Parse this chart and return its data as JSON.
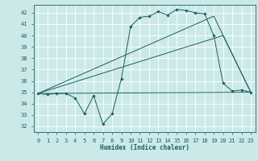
{
  "xlabel": "Humidex (Indice chaleur)",
  "background_color": "#cce9e9",
  "grid_color": "#ffffff",
  "line_color": "#1a5f5f",
  "xlim": [
    -0.5,
    23.5
  ],
  "ylim": [
    31.5,
    42.7
  ],
  "yticks": [
    32,
    33,
    34,
    35,
    36,
    37,
    38,
    39,
    40,
    41,
    42
  ],
  "xticks": [
    0,
    1,
    2,
    3,
    4,
    5,
    6,
    7,
    8,
    9,
    10,
    11,
    12,
    13,
    14,
    15,
    16,
    17,
    18,
    19,
    20,
    21,
    22,
    23
  ],
  "line1_x": [
    0,
    1,
    2,
    3,
    4,
    5,
    6,
    7,
    8,
    9,
    10,
    11,
    12,
    13,
    14,
    15,
    16,
    17,
    18,
    19,
    20,
    21,
    22,
    23
  ],
  "line1_y": [
    34.9,
    34.8,
    34.9,
    34.9,
    34.5,
    33.1,
    34.7,
    32.2,
    33.1,
    36.2,
    40.8,
    41.6,
    41.7,
    42.1,
    41.8,
    42.3,
    42.2,
    42.0,
    41.9,
    40.0,
    35.8,
    35.1,
    35.2,
    35.0
  ],
  "line2_x": [
    0,
    20,
    23
  ],
  "line2_y": [
    34.9,
    40.0,
    35.0
  ],
  "line3_x": [
    0,
    23
  ],
  "line3_y": [
    34.9,
    35.0
  ],
  "line4_x": [
    0,
    19,
    23
  ],
  "line4_y": [
    34.9,
    41.7,
    35.0
  ],
  "xlabel_fontsize": 5.5,
  "tick_fontsize": 5.0,
  "lw": 0.7,
  "ms": 1.8
}
